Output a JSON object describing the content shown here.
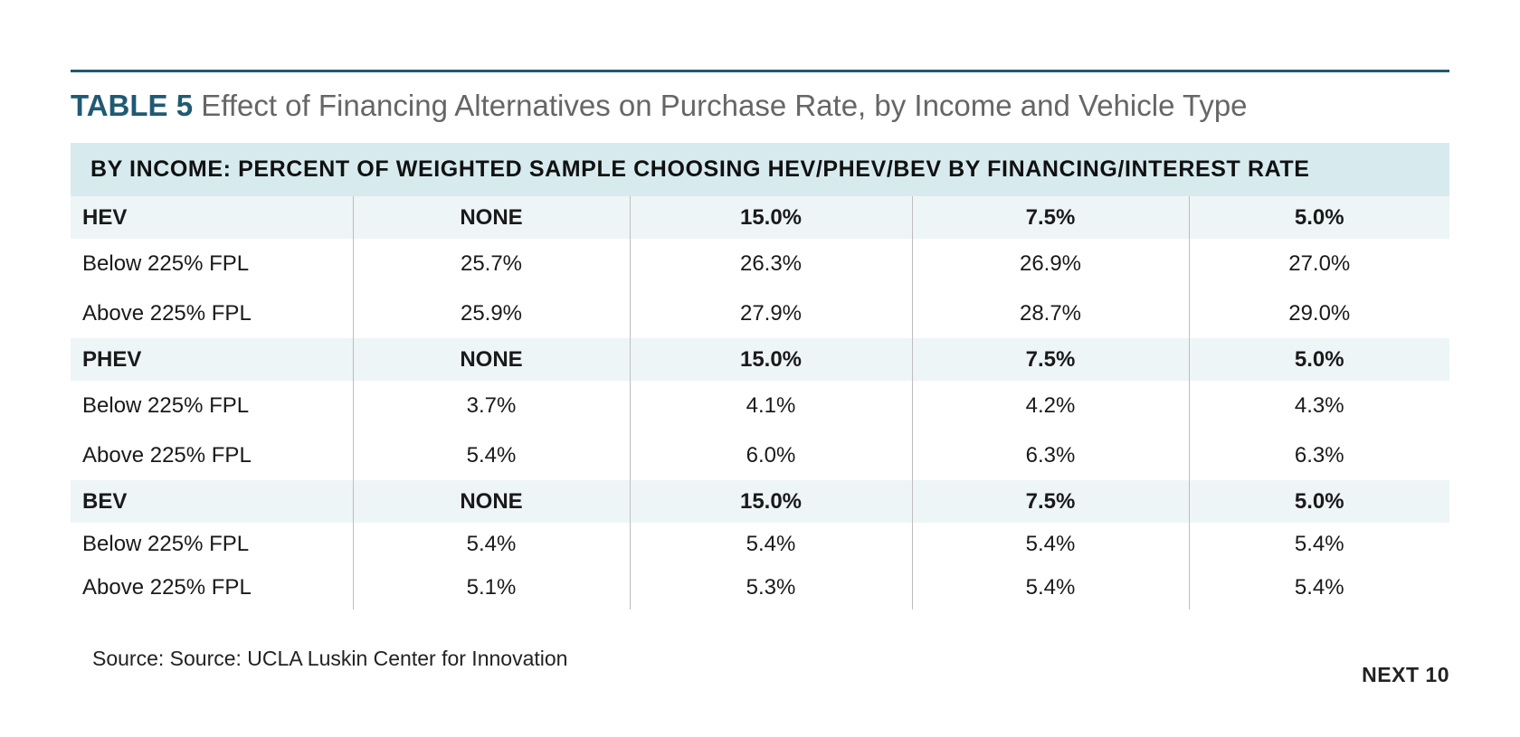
{
  "title": {
    "number": "TABLE 5",
    "text": "Effect of Financing Alternatives on Purchase Rate, by Income and Vehicle Type"
  },
  "table": {
    "banner": "BY INCOME: PERCENT OF WEIGHTED SAMPLE CHOOSING HEV/PHEV/BEV BY FINANCING/INTEREST RATE",
    "groups": [
      {
        "header": [
          "HEV",
          "NONE",
          "15.0%",
          "7.5%",
          "5.0%"
        ],
        "rows": [
          [
            "Below 225% FPL",
            "25.7%",
            "26.3%",
            "26.9%",
            "27.0%"
          ],
          [
            "Above 225% FPL",
            "25.9%",
            "27.9%",
            "28.7%",
            "29.0%"
          ]
        ]
      },
      {
        "header": [
          "PHEV",
          "NONE",
          "15.0%",
          "7.5%",
          "5.0%"
        ],
        "rows": [
          [
            "Below 225% FPL",
            "3.7%",
            "4.1%",
            "4.2%",
            "4.3%"
          ],
          [
            "Above 225% FPL",
            "5.4%",
            "6.0%",
            "6.3%",
            "6.3%"
          ]
        ]
      },
      {
        "header": [
          "BEV",
          "NONE",
          "15.0%",
          "7.5%",
          "5.0%"
        ],
        "rows": [
          [
            "Below 225% FPL",
            "5.4%",
            "5.4%",
            "5.4%",
            "5.4%"
          ],
          [
            "Above 225% FPL",
            "5.1%",
            "5.3%",
            "5.4%",
            "5.4%"
          ]
        ]
      }
    ]
  },
  "source": "Source: Source: UCLA Luskin Center for Innovation",
  "page_label": "NEXT 10",
  "colors": {
    "accent": "#1f5a73",
    "banner_bg": "#d7ebee",
    "group_row_bg": "#eef5f7"
  }
}
